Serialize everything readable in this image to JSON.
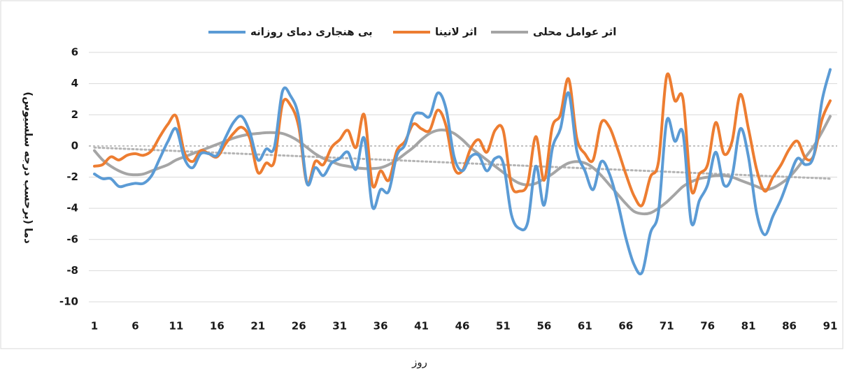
{
  "chart_data": {
    "type": "line",
    "y_label": "دما (برحسب درجه سلسیوس)",
    "x_label": "روز",
    "x": [
      1,
      2,
      3,
      4,
      5,
      6,
      7,
      8,
      9,
      10,
      11,
      12,
      13,
      14,
      15,
      16,
      17,
      18,
      19,
      20,
      21,
      22,
      23,
      24,
      25,
      26,
      27,
      28,
      29,
      30,
      31,
      32,
      33,
      34,
      35,
      36,
      37,
      38,
      39,
      40,
      41,
      42,
      43,
      44,
      45,
      46,
      47,
      48,
      49,
      50,
      51,
      52,
      53,
      54,
      55,
      56,
      57,
      58,
      59,
      60,
      61,
      62,
      63,
      64,
      65,
      66,
      67,
      68,
      69,
      70,
      71,
      72,
      73,
      74,
      75,
      76,
      77,
      78,
      79,
      80,
      81,
      82,
      83,
      84,
      85,
      86,
      87,
      88,
      89,
      90,
      91
    ],
    "xlim": [
      1,
      91
    ],
    "xticks": [
      1,
      6,
      11,
      16,
      21,
      26,
      31,
      36,
      41,
      46,
      51,
      56,
      61,
      66,
      71,
      76,
      81,
      86,
      91
    ],
    "ylim": [
      -10,
      6
    ],
    "yticks": [
      -10,
      -8,
      -6,
      -4,
      -2,
      0,
      2,
      4,
      6
    ],
    "grid": true,
    "legend": "top",
    "series": [
      {
        "name": "بی هنجاری دمای روزانه",
        "color": "#5b9bd5",
        "values": [
          -1.8,
          -2.1,
          -2.1,
          -2.6,
          -2.5,
          -2.4,
          -2.4,
          -1.9,
          -0.8,
          0.3,
          1.1,
          -0.8,
          -1.4,
          -0.5,
          -0.5,
          -0.6,
          0.5,
          1.5,
          1.9,
          0.9,
          -0.9,
          -0.2,
          -0.1,
          3.5,
          3.2,
          1.8,
          -2.4,
          -1.4,
          -1.9,
          -1.1,
          -0.8,
          -0.4,
          -1.5,
          0.5,
          -3.9,
          -2.8,
          -2.9,
          -0.6,
          0.1,
          1.9,
          2.1,
          1.9,
          3.4,
          2.4,
          -0.7,
          -1.6,
          -0.7,
          -0.6,
          -1.6,
          -0.8,
          -1.1,
          -4.4,
          -5.3,
          -4.9,
          -1.3,
          -3.8,
          -0.2,
          1.1,
          3.4,
          -0.3,
          -1.6,
          -2.8,
          -1.0,
          -1.8,
          -3.6,
          -5.9,
          -7.6,
          -8.1,
          -5.6,
          -4.2,
          1.6,
          0.3,
          0.8,
          -4.9,
          -3.5,
          -2.5,
          -0.4,
          -2.5,
          -1.9,
          1.1,
          -0.7,
          -4.3,
          -5.7,
          -4.5,
          -3.4,
          -2.0,
          -0.8,
          -1.2,
          -0.6,
          2.9,
          4.9
        ]
      },
      {
        "name": "اثر لانینا",
        "color": "#ed7d31",
        "values": [
          -1.3,
          -1.2,
          -0.7,
          -0.9,
          -0.6,
          -0.5,
          -0.6,
          -0.3,
          0.6,
          1.4,
          1.9,
          -0.4,
          -1.0,
          -0.3,
          -0.5,
          -0.7,
          0.1,
          0.8,
          1.2,
          0.5,
          -1.7,
          -1.1,
          -1.0,
          2.7,
          2.6,
          1.2,
          -2.4,
          -1.0,
          -1.2,
          -0.1,
          0.4,
          1.0,
          -0.1,
          2.0,
          -2.5,
          -1.6,
          -2.2,
          -0.3,
          0.3,
          1.4,
          1.1,
          1.0,
          2.3,
          1.3,
          -1.4,
          -1.6,
          -0.2,
          0.4,
          -0.4,
          1.0,
          1.0,
          -2.5,
          -2.9,
          -2.4,
          0.6,
          -2.2,
          1.2,
          2.0,
          4.3,
          0.5,
          -0.5,
          -0.9,
          1.5,
          1.2,
          -0.2,
          -1.8,
          -3.2,
          -3.8,
          -2.0,
          -1.0,
          4.5,
          2.9,
          3.0,
          -2.8,
          -1.8,
          -1.2,
          1.5,
          -0.5,
          0.3,
          3.3,
          1.1,
          -1.5,
          -2.9,
          -2.0,
          -1.2,
          -0.2,
          0.3,
          -0.8,
          -0.6,
          1.7,
          2.9
        ]
      },
      {
        "name": "اثر عوامل محلی",
        "color": "#a5a5a5",
        "values": [
          -0.3,
          -0.9,
          -1.3,
          -1.6,
          -1.8,
          -1.85,
          -1.8,
          -1.6,
          -1.4,
          -1.2,
          -0.9,
          -0.7,
          -0.5,
          -0.3,
          -0.1,
          0.1,
          0.3,
          0.5,
          0.65,
          0.75,
          0.8,
          0.85,
          0.85,
          0.8,
          0.6,
          0.3,
          -0.1,
          -0.5,
          -0.8,
          -1.0,
          -1.2,
          -1.3,
          -1.4,
          -1.45,
          -1.45,
          -1.4,
          -1.2,
          -0.9,
          -0.5,
          -0.1,
          0.4,
          0.8,
          1.0,
          1.0,
          0.8,
          0.4,
          -0.1,
          -0.5,
          -0.9,
          -1.3,
          -1.7,
          -2.1,
          -2.4,
          -2.5,
          -2.4,
          -2.1,
          -1.8,
          -1.4,
          -1.1,
          -1.0,
          -1.1,
          -1.4,
          -1.9,
          -2.5,
          -3.1,
          -3.7,
          -4.2,
          -4.35,
          -4.3,
          -4.0,
          -3.6,
          -3.1,
          -2.6,
          -2.3,
          -2.1,
          -2.0,
          -1.9,
          -1.9,
          -2.0,
          -2.2,
          -2.4,
          -2.6,
          -2.8,
          -2.7,
          -2.4,
          -2.0,
          -1.4,
          -0.7,
          0.0,
          0.9,
          1.9
        ]
      }
    ],
    "trendline": {
      "x": [
        1,
        91
      ],
      "values": [
        -0.1,
        -2.1
      ],
      "color": "#b4b4b4"
    }
  }
}
